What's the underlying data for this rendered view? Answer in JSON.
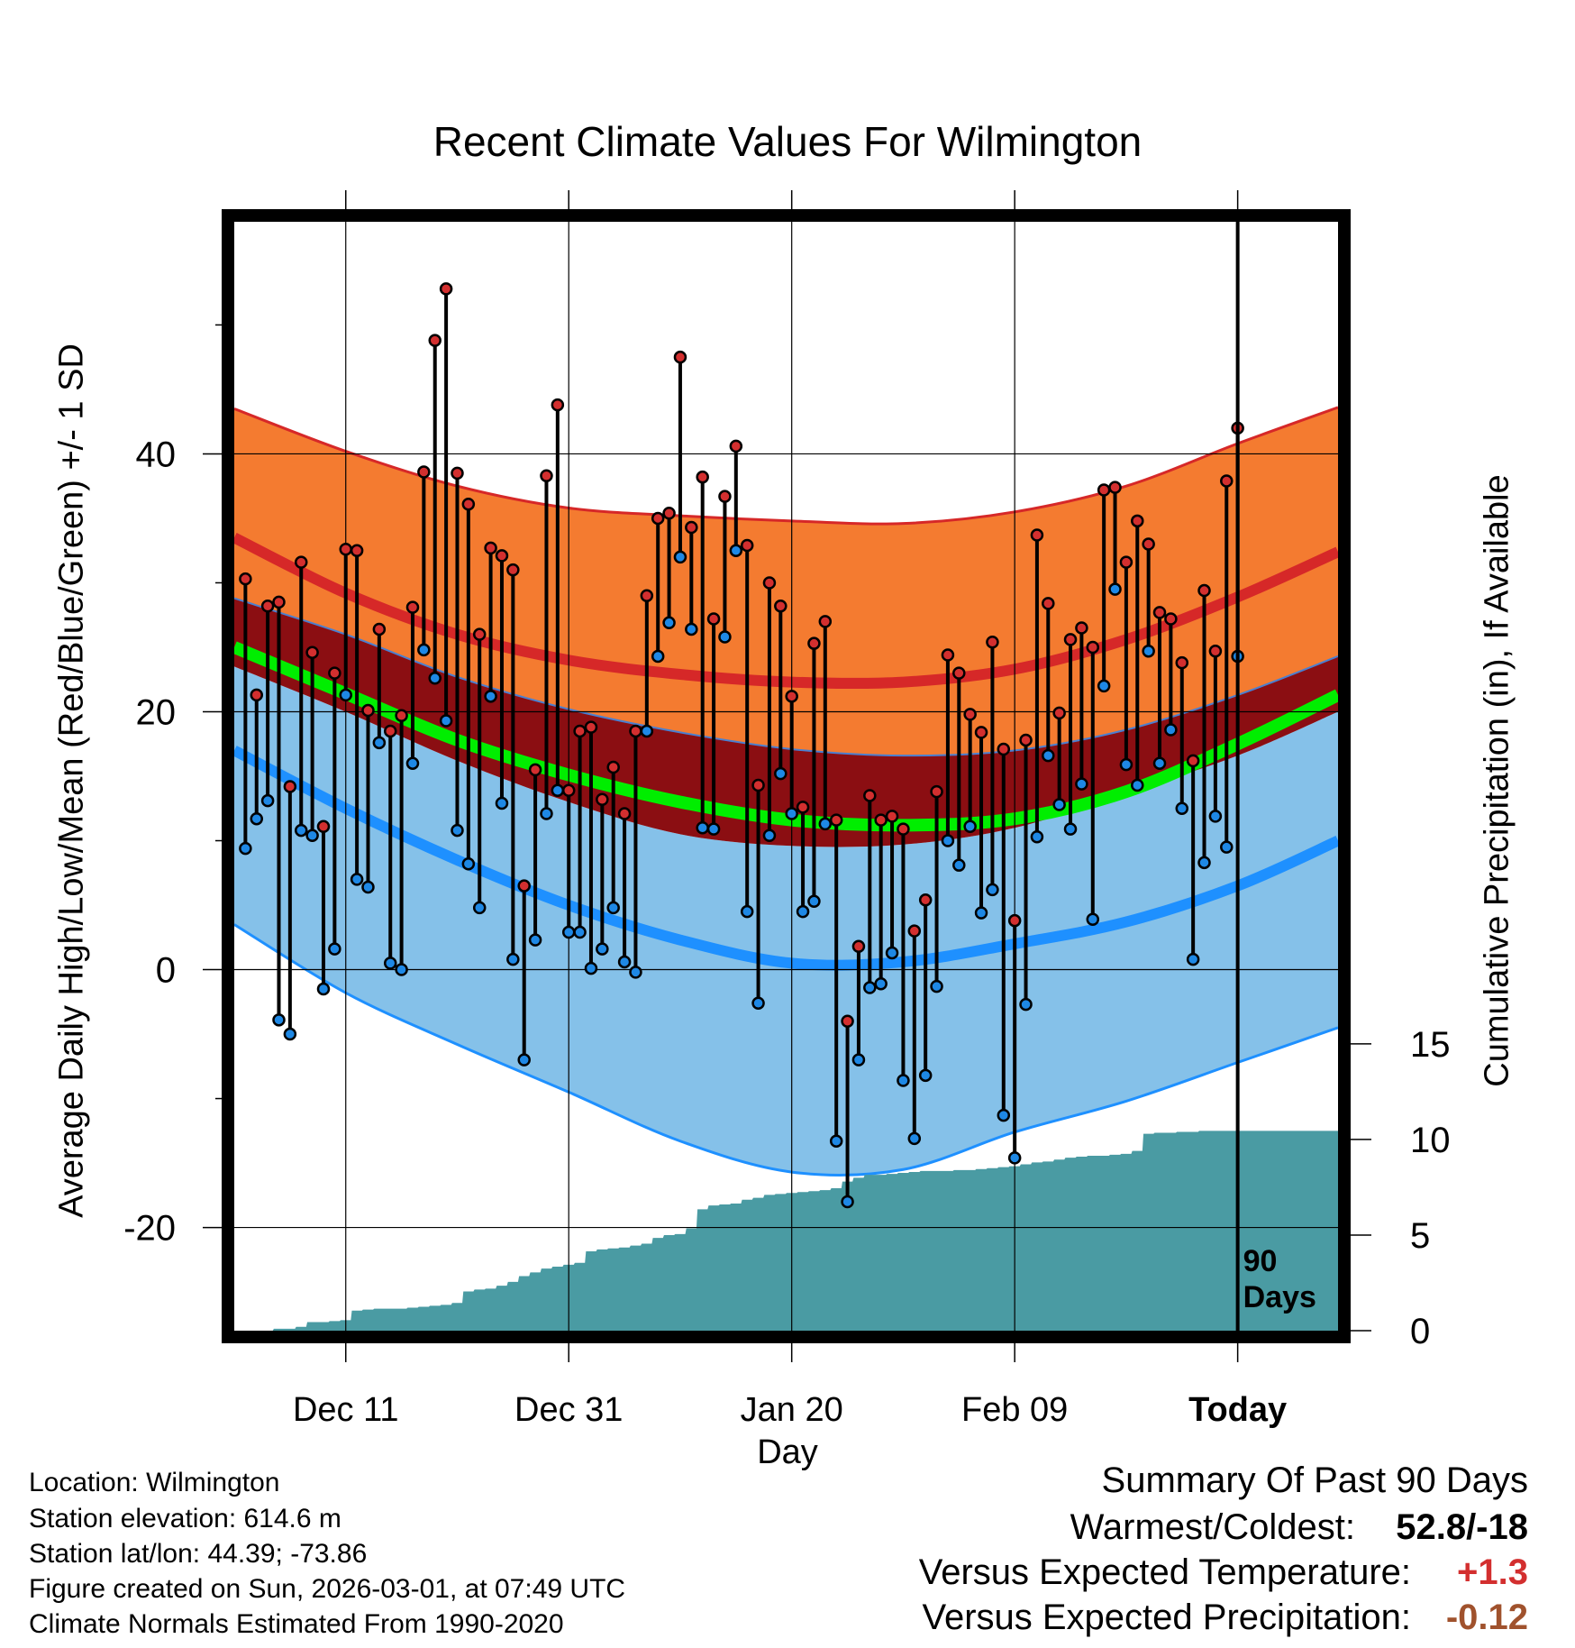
{
  "title": "Recent Climate Values For Wilmington",
  "x_label": "Day",
  "y_label": "Average Daily High/Low/Mean (Red/Blue/Green) +/- 1 SD",
  "y2_label": "Cumulative Precipitation (in), If Available",
  "today_marker": "90 Days",
  "info": {
    "location": "Location: Wilmington",
    "elevation": "Station elevation: 614.6 m",
    "latlon": "Station lat/lon: 44.39; -73.86",
    "created": "Figure created on Sun, 2026-03-01, at 07:49 UTC",
    "normals": "Climate Normals Estimated From 1990-2020"
  },
  "summary": {
    "heading": "Summary Of Past 90 Days",
    "warmest_label": "Warmest/Coldest:",
    "warmest_value": "52.8/-18",
    "temp_label": "Versus Expected Temperature:",
    "temp_value": "+1.3",
    "precip_label": "Versus Expected Precipitation:",
    "precip_value": "-0.12"
  },
  "colors": {
    "high_band": "#f47b30",
    "high_mean": "#d62828",
    "mean_band": "#8b0e12",
    "mean_line": "#00ee00",
    "low_band": "#85c1e9",
    "low_mean": "#1e90ff",
    "precip": "#4a9ba3",
    "high_point": "#d32f2f",
    "low_point": "#1e88e5",
    "temp_value": "#d32f2f",
    "precip_value": "#a0522d"
  },
  "chart_data": {
    "type": "line",
    "x_range": [
      -90,
      9
    ],
    "y_range": [
      -28,
      58
    ],
    "y2_range": [
      0,
      58
    ],
    "x_ticks": [
      {
        "day": -80,
        "label": "Dec 11"
      },
      {
        "day": -60,
        "label": "Dec 31"
      },
      {
        "day": -40,
        "label": "Jan 20"
      },
      {
        "day": -20,
        "label": "Feb 09"
      },
      {
        "day": 0,
        "label": "Today"
      }
    ],
    "y_ticks": [
      -20,
      0,
      20,
      40
    ],
    "y2_ticks": [
      0,
      5,
      10,
      15
    ],
    "normals": {
      "days": [
        -90,
        -80,
        -70,
        -60,
        -50,
        -40,
        -30,
        -20,
        -10,
        0,
        9
      ],
      "high_upper": [
        43.5,
        40.2,
        37.5,
        35.8,
        35.2,
        34.8,
        34.6,
        35.5,
        37.5,
        40.8,
        43.6
      ],
      "high_mean": [
        33.5,
        29.2,
        26.0,
        24.0,
        22.9,
        22.3,
        22.3,
        23.3,
        25.6,
        28.9,
        32.4
      ],
      "high_lower": [
        28.8,
        26.0,
        22.7,
        20.2,
        18.4,
        17.1,
        16.6,
        17.0,
        18.6,
        21.3,
        24.3
      ],
      "mean": [
        25.0,
        21.4,
        17.8,
        15.1,
        13.0,
        11.6,
        11.2,
        11.7,
        13.8,
        17.5,
        21.3
      ],
      "low_upper": [
        23.5,
        20.0,
        16.2,
        13.0,
        10.5,
        9.6,
        9.7,
        11.0,
        13.7,
        16.6,
        20.0
      ],
      "low_mean": [
        17.0,
        12.5,
        8.5,
        5.0,
        2.3,
        0.5,
        0.6,
        2.0,
        3.7,
        6.5,
        10.0
      ],
      "low_lower": [
        3.5,
        -1.8,
        -5.8,
        -9.5,
        -13.3,
        -15.7,
        -15.5,
        -12.6,
        -10.2,
        -7.2,
        -4.5
      ]
    },
    "series": [
      {
        "name": "Daily High",
        "values": [
          30.3,
          21.3,
          28.2,
          28.5,
          14.2,
          31.6,
          24.6,
          11.1,
          23.0,
          32.6,
          32.5,
          20.1,
          26.4,
          18.5,
          19.7,
          28.1,
          38.6,
          48.8,
          52.8,
          38.5,
          36.1,
          26.0,
          32.7,
          32.1,
          31.0,
          6.5,
          15.5,
          38.3,
          43.8,
          13.9,
          18.5,
          18.8,
          13.2,
          15.7,
          12.1,
          18.5,
          29.0,
          35.0,
          35.4,
          47.5,
          34.3,
          38.2,
          27.2,
          36.7,
          40.6,
          32.9,
          14.3,
          30.0,
          28.2,
          21.2,
          12.6,
          25.3,
          27.0,
          11.6,
          -4.0,
          1.8,
          13.5,
          11.6,
          11.9,
          10.9,
          3.0,
          5.4,
          13.8,
          24.4,
          23.0,
          19.8,
          18.4,
          25.4,
          17.1,
          3.8,
          17.8,
          33.7,
          28.4,
          19.9,
          25.6,
          26.5,
          25.0,
          37.2,
          37.4,
          31.6,
          34.8,
          33.0,
          27.7,
          27.2,
          23.8,
          16.2,
          29.4,
          24.7,
          37.9,
          42.0
        ]
      },
      {
        "name": "Daily Low",
        "values": [
          9.4,
          11.7,
          13.1,
          -3.9,
          -5.0,
          10.8,
          10.4,
          -1.5,
          1.6,
          21.3,
          7.0,
          6.4,
          17.6,
          0.5,
          0.0,
          16.0,
          24.8,
          22.6,
          19.3,
          10.8,
          8.2,
          4.8,
          21.2,
          12.9,
          0.8,
          -7.0,
          2.3,
          12.1,
          13.9,
          2.9,
          2.9,
          0.1,
          1.6,
          4.8,
          0.6,
          -0.2,
          18.5,
          24.3,
          26.9,
          32.0,
          26.4,
          11.0,
          10.9,
          25.8,
          32.5,
          4.5,
          -2.6,
          10.4,
          15.2,
          12.1,
          4.5,
          5.3,
          11.3,
          -13.3,
          -18.0,
          -7.0,
          -1.4,
          -1.1,
          1.3,
          -8.6,
          -13.1,
          -8.2,
          -1.3,
          10.0,
          8.1,
          11.1,
          4.4,
          6.2,
          -11.3,
          -14.6,
          -2.7,
          10.3,
          16.6,
          12.8,
          10.9,
          14.4,
          3.9,
          22.0,
          29.5,
          15.9,
          14.3,
          24.7,
          16.0,
          18.6,
          12.5,
          0.8,
          8.3,
          11.9,
          9.5,
          24.3
        ]
      },
      {
        "name": "Cumulative Precipitation",
        "values": [
          0.0,
          0.0,
          0.0,
          0.1,
          0.1,
          0.2,
          0.45,
          0.45,
          0.5,
          0.55,
          1.05,
          1.1,
          1.15,
          1.15,
          1.15,
          1.2,
          1.25,
          1.3,
          1.35,
          1.45,
          2.05,
          2.15,
          2.2,
          2.35,
          2.55,
          2.85,
          3.05,
          3.25,
          3.35,
          3.45,
          3.55,
          4.15,
          4.25,
          4.3,
          4.35,
          4.45,
          4.55,
          4.85,
          5.0,
          5.05,
          5.35,
          6.35,
          6.55,
          6.6,
          6.65,
          6.85,
          6.95,
          7.1,
          7.15,
          7.2,
          7.25,
          7.3,
          7.35,
          7.45,
          7.8,
          8.0,
          8.15,
          8.15,
          8.2,
          8.25,
          8.3,
          8.35,
          8.35,
          8.35,
          8.4,
          8.4,
          8.45,
          8.5,
          8.55,
          8.6,
          8.7,
          8.8,
          8.85,
          8.95,
          9.05,
          9.1,
          9.15,
          9.15,
          9.2,
          9.25,
          9.4,
          10.3,
          10.35,
          10.35,
          10.4,
          10.4,
          10.45,
          10.45,
          10.45,
          10.45
        ]
      }
    ],
    "precip_extend": {
      "days": [
        1,
        9
      ],
      "value": 10.45
    }
  }
}
